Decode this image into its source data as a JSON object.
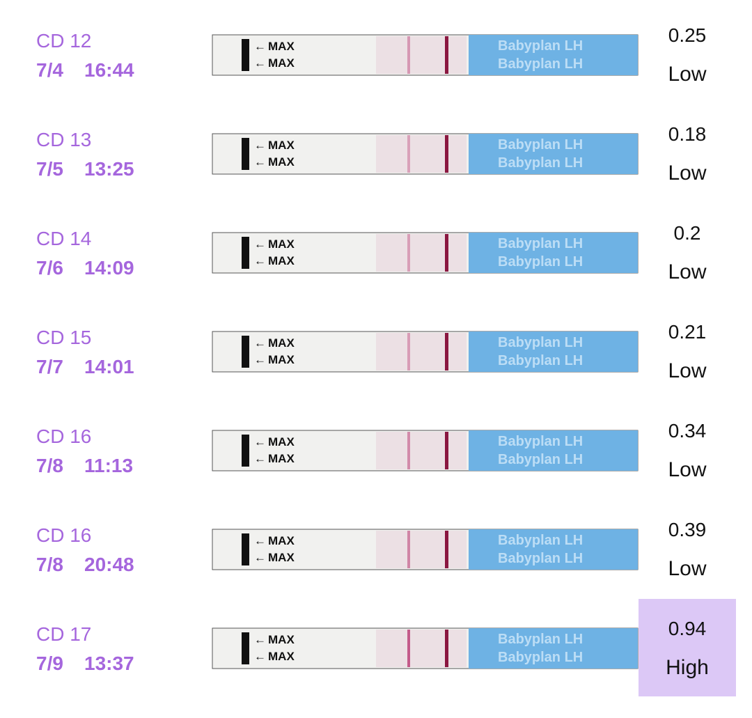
{
  "strip": {
    "marker": "MAX",
    "brand": "Babyplan LH"
  },
  "rows": [
    {
      "cycle_day": "CD 12",
      "date": "7/4",
      "time": "16:44",
      "ratio": 0.25,
      "level": "Low"
    },
    {
      "cycle_day": "CD 13",
      "date": "7/5",
      "time": "13:25",
      "ratio": 0.18,
      "level": "Low"
    },
    {
      "cycle_day": "CD 14",
      "date": "7/6",
      "time": "14:09",
      "ratio": 0.2,
      "level": "Low"
    },
    {
      "cycle_day": "CD 15",
      "date": "7/7",
      "time": "14:01",
      "ratio": 0.21,
      "level": "Low"
    },
    {
      "cycle_day": "CD 16",
      "date": "7/8",
      "time": "11:13",
      "ratio": 0.34,
      "level": "Low"
    },
    {
      "cycle_day": "CD 16",
      "date": "7/8",
      "time": "20:48",
      "ratio": 0.39,
      "level": "Low"
    },
    {
      "cycle_day": "CD 17",
      "date": "7/9",
      "time": "13:37",
      "ratio": 0.94,
      "level": "High"
    }
  ]
}
